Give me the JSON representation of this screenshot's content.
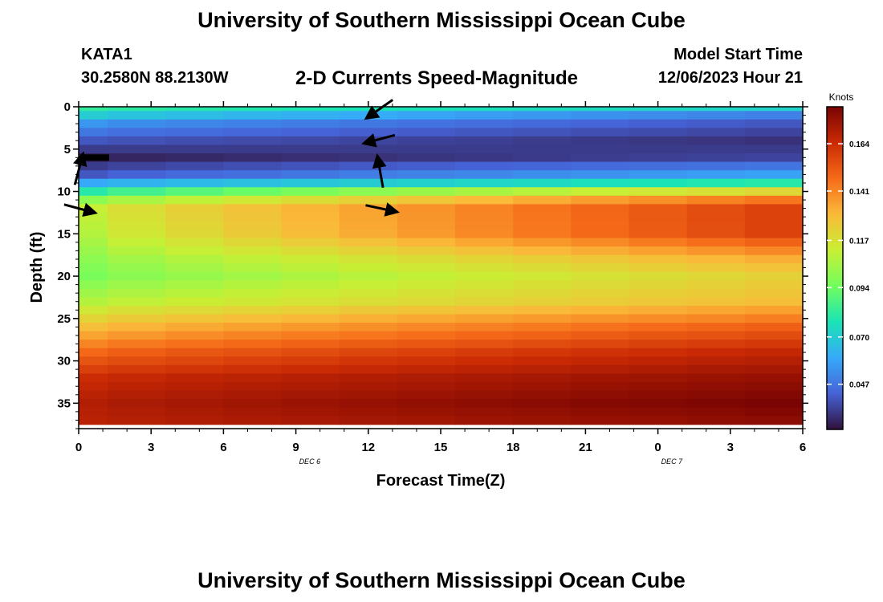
{
  "header": {
    "title": "University of Southern Mississippi Ocean Cube",
    "station": "KATA1",
    "coords": "30.2580N  88.2130W",
    "subtitle": "2-D Currents Speed-Magnitude",
    "model_start_label": "Model Start Time",
    "model_start_value": "12/06/2023 Hour 21"
  },
  "footer": {
    "title": "University of Southern Mississippi Ocean Cube"
  },
  "colors": {
    "stops": [
      "#30123b",
      "#4662d7",
      "#36aaf9",
      "#1ae4b6",
      "#72fe5e",
      "#c8ef34",
      "#faba39",
      "#f66b19",
      "#ca2a04",
      "#7a0403"
    ]
  },
  "chart_data": {
    "type": "heatmap",
    "title": "2-D Currents Speed-Magnitude",
    "xlabel": "Forecast Time(Z)",
    "ylabel": "Depth (ft)",
    "x_tick_labels": [
      "0",
      "3",
      "6",
      "9",
      "12",
      "15",
      "18",
      "21",
      "0",
      "3",
      "6"
    ],
    "date_labels": [
      {
        "text": "DEC 6",
        "at_hours": 15
      },
      {
        "text": "DEC 7",
        "at_hours": 33
      }
    ],
    "y_tick_labels": [
      "0",
      "5",
      "10",
      "15",
      "20",
      "25",
      "30",
      "35"
    ],
    "x_range_hours": [
      0,
      36
    ],
    "y_range_ft": [
      0,
      38
    ],
    "colorbar": {
      "label": "Knots",
      "ticks": [
        "0.164",
        "0.141",
        "0.117",
        "0.094",
        "0.070",
        "0.047"
      ],
      "range": [
        0.025,
        0.182
      ]
    },
    "time_columns_hours": [
      0,
      3,
      6,
      9,
      12,
      15,
      18,
      21,
      24,
      27,
      30,
      33,
      36
    ],
    "depth_rows_ft": [
      0,
      1,
      2,
      3,
      4,
      5,
      6,
      7,
      8,
      9,
      10,
      11,
      12,
      13,
      14,
      15,
      16,
      17,
      18,
      19,
      20,
      21,
      22,
      23,
      24,
      25,
      26,
      27,
      28,
      29,
      30,
      31,
      32,
      33,
      34,
      35,
      36,
      37
    ],
    "depth_profiles": [
      {
        "depth_ft": 0,
        "speed_start": 0.082,
        "speed_end": 0.072
      },
      {
        "depth_ft": 1,
        "speed_start": 0.07,
        "speed_end": 0.05
      },
      {
        "depth_ft": 2,
        "speed_start": 0.055,
        "speed_end": 0.04
      },
      {
        "depth_ft": 4,
        "speed_start": 0.04,
        "speed_end": 0.032
      },
      {
        "depth_ft": 6,
        "speed_start": 0.028,
        "speed_end": 0.036
      },
      {
        "depth_ft": 8,
        "speed_start": 0.04,
        "speed_end": 0.058
      },
      {
        "depth_ft": 9,
        "speed_start": 0.06,
        "speed_end": 0.08
      },
      {
        "depth_ft": 10,
        "speed_start": 0.08,
        "speed_end": 0.12
      },
      {
        "depth_ft": 11,
        "speed_start": 0.1,
        "speed_end": 0.145
      },
      {
        "depth_ft": 12,
        "speed_start": 0.112,
        "speed_end": 0.158
      },
      {
        "depth_ft": 15,
        "speed_start": 0.108,
        "speed_end": 0.158
      },
      {
        "depth_ft": 18,
        "speed_start": 0.1,
        "speed_end": 0.132
      },
      {
        "depth_ft": 20,
        "speed_start": 0.096,
        "speed_end": 0.122
      },
      {
        "depth_ft": 23,
        "speed_start": 0.108,
        "speed_end": 0.128
      },
      {
        "depth_ft": 26,
        "speed_start": 0.128,
        "speed_end": 0.15
      },
      {
        "depth_ft": 29,
        "speed_start": 0.148,
        "speed_end": 0.166
      },
      {
        "depth_ft": 32,
        "speed_start": 0.164,
        "speed_end": 0.176
      },
      {
        "depth_ft": 35,
        "speed_start": 0.17,
        "speed_end": 0.182
      },
      {
        "depth_ft": 37,
        "speed_start": 0.168,
        "speed_end": 0.178
      }
    ],
    "vectors": [
      {
        "hours": 15.0,
        "depth_ft": 0.2,
        "angle_deg": 215,
        "length": 0.55
      },
      {
        "hours": 15.0,
        "depth_ft": 3.8,
        "angle_deg": 195,
        "length": 0.55
      },
      {
        "hours": 15.0,
        "depth_ft": 7.8,
        "angle_deg": 100,
        "length": 0.55
      },
      {
        "hours": 0.0,
        "depth_ft": 7.5,
        "angle_deg": 75,
        "length": 0.55
      },
      {
        "hours": 0.0,
        "depth_ft": 12.0,
        "angle_deg": -15,
        "length": 0.55
      },
      {
        "hours": 15.0,
        "depth_ft": 12.0,
        "angle_deg": -12,
        "length": 0.55
      }
    ]
  }
}
